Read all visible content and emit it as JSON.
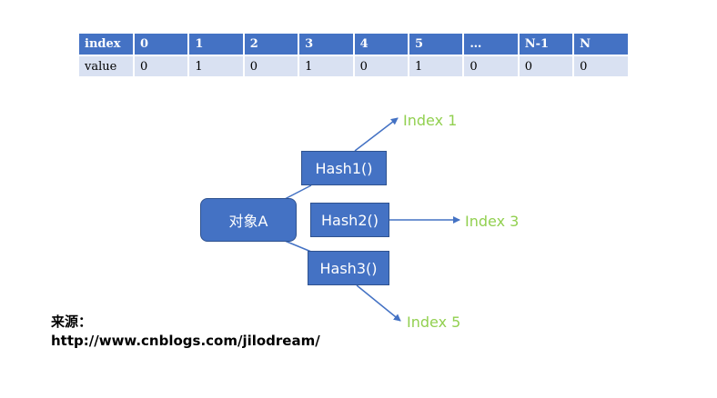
{
  "table": {
    "row_headers": {
      "index": "index",
      "value": "value"
    },
    "indices": [
      "0",
      "1",
      "2",
      "3",
      "4",
      "5",
      "…",
      "N-1",
      "N"
    ],
    "values": [
      "0",
      "1",
      "0",
      "1",
      "0",
      "1",
      "0",
      "0",
      "0"
    ]
  },
  "diagram": {
    "object_label": "对象A",
    "hash_functions": [
      "Hash1()",
      "Hash2()",
      "Hash3()"
    ],
    "index_labels": [
      "Index 1",
      "Index 3",
      "Index 5"
    ],
    "colors": {
      "box_fill": "#4472c4",
      "box_border": "#2f528f",
      "arrow": "#4472c4",
      "index_text": "#92d050",
      "table_header": "#4472c4",
      "table_value": "#d9e1f2"
    }
  },
  "source": {
    "label": "来源：",
    "url": "http://www.cnblogs.com/jilodream/"
  }
}
